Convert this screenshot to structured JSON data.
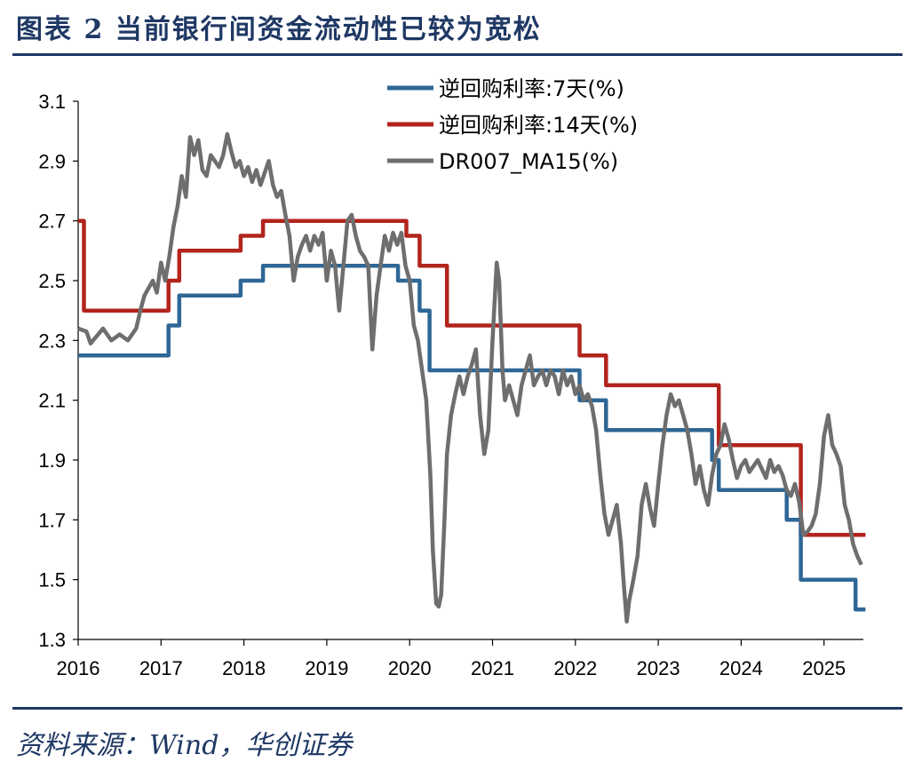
{
  "title": "图表 2    当前银行间资金流动性已较为宽松",
  "source": "资料来源：Wind，华创证券",
  "chart_data": {
    "type": "line",
    "title": "当前银行间资金流动性已较为宽松",
    "xlabel": "",
    "ylabel": "",
    "xlim": [
      2016,
      2025.5
    ],
    "ylim": [
      1.3,
      3.1
    ],
    "yticks": [
      "1.3",
      "1.5",
      "1.7",
      "1.9",
      "2.1",
      "2.3",
      "2.5",
      "2.7",
      "2.9",
      "3.1"
    ],
    "xticks": [
      "2016",
      "2017",
      "2018",
      "2019",
      "2020",
      "2021",
      "2022",
      "2023",
      "2024",
      "2025"
    ],
    "legend": "top-right",
    "series": [
      {
        "name": "逆回购利率:7天(%)",
        "color": "#2e6796",
        "step": true,
        "points": [
          [
            2016.0,
            2.25
          ],
          [
            2017.09,
            2.35
          ],
          [
            2017.22,
            2.45
          ],
          [
            2017.96,
            2.5
          ],
          [
            2018.23,
            2.55
          ],
          [
            2019.86,
            2.5
          ],
          [
            2020.12,
            2.4
          ],
          [
            2020.24,
            2.2
          ],
          [
            2022.05,
            2.1
          ],
          [
            2022.37,
            2.0
          ],
          [
            2023.65,
            1.9
          ],
          [
            2023.73,
            1.8
          ],
          [
            2024.55,
            1.7
          ],
          [
            2024.72,
            1.5
          ],
          [
            2025.38,
            1.4
          ],
          [
            2025.5,
            1.4
          ]
        ]
      },
      {
        "name": "逆回购利率:14天(%)",
        "color": "#b2241c",
        "step": true,
        "points": [
          [
            2016.0,
            2.7
          ],
          [
            2016.07,
            2.4
          ],
          [
            2017.09,
            2.5
          ],
          [
            2017.22,
            2.6
          ],
          [
            2017.96,
            2.65
          ],
          [
            2018.23,
            2.7
          ],
          [
            2019.96,
            2.65
          ],
          [
            2020.12,
            2.55
          ],
          [
            2020.45,
            2.35
          ],
          [
            2022.05,
            2.25
          ],
          [
            2022.37,
            2.15
          ],
          [
            2023.73,
            1.95
          ],
          [
            2024.72,
            1.65
          ],
          [
            2025.5,
            1.65
          ]
        ]
      },
      {
        "name": "DR007_MA15(%)",
        "color": "#6e6e6e",
        "step": false,
        "points": [
          [
            2016.0,
            2.34
          ],
          [
            2016.1,
            2.33
          ],
          [
            2016.15,
            2.29
          ],
          [
            2016.3,
            2.34
          ],
          [
            2016.4,
            2.3
          ],
          [
            2016.5,
            2.32
          ],
          [
            2016.6,
            2.3
          ],
          [
            2016.7,
            2.34
          ],
          [
            2016.75,
            2.4
          ],
          [
            2016.8,
            2.45
          ],
          [
            2016.9,
            2.5
          ],
          [
            2016.95,
            2.46
          ],
          [
            2017.0,
            2.56
          ],
          [
            2017.05,
            2.5
          ],
          [
            2017.1,
            2.58
          ],
          [
            2017.15,
            2.68
          ],
          [
            2017.2,
            2.75
          ],
          [
            2017.25,
            2.85
          ],
          [
            2017.3,
            2.78
          ],
          [
            2017.35,
            2.98
          ],
          [
            2017.4,
            2.92
          ],
          [
            2017.45,
            2.97
          ],
          [
            2017.5,
            2.87
          ],
          [
            2017.55,
            2.85
          ],
          [
            2017.6,
            2.92
          ],
          [
            2017.7,
            2.88
          ],
          [
            2017.75,
            2.92
          ],
          [
            2017.8,
            2.99
          ],
          [
            2017.85,
            2.93
          ],
          [
            2017.9,
            2.88
          ],
          [
            2017.95,
            2.9
          ],
          [
            2018.0,
            2.85
          ],
          [
            2018.05,
            2.88
          ],
          [
            2018.1,
            2.83
          ],
          [
            2018.15,
            2.87
          ],
          [
            2018.2,
            2.82
          ],
          [
            2018.25,
            2.86
          ],
          [
            2018.3,
            2.9
          ],
          [
            2018.35,
            2.82
          ],
          [
            2018.4,
            2.78
          ],
          [
            2018.45,
            2.8
          ],
          [
            2018.5,
            2.72
          ],
          [
            2018.55,
            2.65
          ],
          [
            2018.6,
            2.5
          ],
          [
            2018.65,
            2.58
          ],
          [
            2018.7,
            2.62
          ],
          [
            2018.75,
            2.65
          ],
          [
            2018.8,
            2.6
          ],
          [
            2018.85,
            2.65
          ],
          [
            2018.9,
            2.62
          ],
          [
            2018.95,
            2.66
          ],
          [
            2019.0,
            2.5
          ],
          [
            2019.05,
            2.6
          ],
          [
            2019.1,
            2.55
          ],
          [
            2019.15,
            2.4
          ],
          [
            2019.2,
            2.55
          ],
          [
            2019.25,
            2.7
          ],
          [
            2019.3,
            2.72
          ],
          [
            2019.35,
            2.65
          ],
          [
            2019.4,
            2.6
          ],
          [
            2019.45,
            2.58
          ],
          [
            2019.5,
            2.55
          ],
          [
            2019.55,
            2.27
          ],
          [
            2019.6,
            2.45
          ],
          [
            2019.65,
            2.55
          ],
          [
            2019.7,
            2.65
          ],
          [
            2019.75,
            2.6
          ],
          [
            2019.8,
            2.66
          ],
          [
            2019.85,
            2.62
          ],
          [
            2019.9,
            2.66
          ],
          [
            2019.95,
            2.55
          ],
          [
            2020.0,
            2.5
          ],
          [
            2020.05,
            2.35
          ],
          [
            2020.1,
            2.3
          ],
          [
            2020.15,
            2.2
          ],
          [
            2020.2,
            2.1
          ],
          [
            2020.25,
            1.85
          ],
          [
            2020.28,
            1.6
          ],
          [
            2020.32,
            1.42
          ],
          [
            2020.35,
            1.41
          ],
          [
            2020.38,
            1.45
          ],
          [
            2020.42,
            1.7
          ],
          [
            2020.45,
            1.92
          ],
          [
            2020.5,
            2.05
          ],
          [
            2020.55,
            2.12
          ],
          [
            2020.6,
            2.18
          ],
          [
            2020.65,
            2.12
          ],
          [
            2020.7,
            2.18
          ],
          [
            2020.75,
            2.22
          ],
          [
            2020.8,
            2.27
          ],
          [
            2020.85,
            2.05
          ],
          [
            2020.9,
            1.92
          ],
          [
            2020.95,
            2.0
          ],
          [
            2021.0,
            2.3
          ],
          [
            2021.05,
            2.56
          ],
          [
            2021.08,
            2.5
          ],
          [
            2021.12,
            2.2
          ],
          [
            2021.15,
            2.1
          ],
          [
            2021.2,
            2.15
          ],
          [
            2021.25,
            2.1
          ],
          [
            2021.3,
            2.05
          ],
          [
            2021.35,
            2.15
          ],
          [
            2021.4,
            2.2
          ],
          [
            2021.45,
            2.25
          ],
          [
            2021.5,
            2.15
          ],
          [
            2021.55,
            2.18
          ],
          [
            2021.6,
            2.2
          ],
          [
            2021.65,
            2.15
          ],
          [
            2021.7,
            2.2
          ],
          [
            2021.75,
            2.18
          ],
          [
            2021.8,
            2.12
          ],
          [
            2021.85,
            2.2
          ],
          [
            2021.9,
            2.15
          ],
          [
            2021.95,
            2.18
          ],
          [
            2022.0,
            2.12
          ],
          [
            2022.05,
            2.15
          ],
          [
            2022.1,
            2.1
          ],
          [
            2022.15,
            2.12
          ],
          [
            2022.2,
            2.08
          ],
          [
            2022.25,
            2.0
          ],
          [
            2022.3,
            1.85
          ],
          [
            2022.35,
            1.72
          ],
          [
            2022.4,
            1.65
          ],
          [
            2022.45,
            1.7
          ],
          [
            2022.5,
            1.75
          ],
          [
            2022.55,
            1.62
          ],
          [
            2022.58,
            1.5
          ],
          [
            2022.62,
            1.36
          ],
          [
            2022.65,
            1.43
          ],
          [
            2022.7,
            1.5
          ],
          [
            2022.75,
            1.58
          ],
          [
            2022.8,
            1.75
          ],
          [
            2022.85,
            1.82
          ],
          [
            2022.9,
            1.74
          ],
          [
            2022.95,
            1.68
          ],
          [
            2023.0,
            1.82
          ],
          [
            2023.05,
            1.95
          ],
          [
            2023.1,
            2.05
          ],
          [
            2023.15,
            2.12
          ],
          [
            2023.2,
            2.08
          ],
          [
            2023.25,
            2.1
          ],
          [
            2023.3,
            2.05
          ],
          [
            2023.35,
            2.0
          ],
          [
            2023.4,
            1.92
          ],
          [
            2023.45,
            1.82
          ],
          [
            2023.5,
            1.88
          ],
          [
            2023.55,
            1.8
          ],
          [
            2023.6,
            1.75
          ],
          [
            2023.65,
            1.85
          ],
          [
            2023.7,
            1.92
          ],
          [
            2023.75,
            1.95
          ],
          [
            2023.8,
            2.02
          ],
          [
            2023.85,
            1.97
          ],
          [
            2023.9,
            1.9
          ],
          [
            2023.95,
            1.84
          ],
          [
            2024.0,
            1.88
          ],
          [
            2024.05,
            1.9
          ],
          [
            2024.1,
            1.86
          ],
          [
            2024.15,
            1.88
          ],
          [
            2024.2,
            1.9
          ],
          [
            2024.25,
            1.87
          ],
          [
            2024.3,
            1.84
          ],
          [
            2024.35,
            1.9
          ],
          [
            2024.4,
            1.86
          ],
          [
            2024.45,
            1.88
          ],
          [
            2024.5,
            1.85
          ],
          [
            2024.55,
            1.8
          ],
          [
            2024.6,
            1.78
          ],
          [
            2024.65,
            1.82
          ],
          [
            2024.7,
            1.76
          ],
          [
            2024.75,
            1.65
          ],
          [
            2024.8,
            1.66
          ],
          [
            2024.85,
            1.68
          ],
          [
            2024.9,
            1.72
          ],
          [
            2024.95,
            1.82
          ],
          [
            2025.0,
            1.98
          ],
          [
            2025.05,
            2.05
          ],
          [
            2025.1,
            1.95
          ],
          [
            2025.15,
            1.92
          ],
          [
            2025.2,
            1.88
          ],
          [
            2025.25,
            1.75
          ],
          [
            2025.3,
            1.7
          ],
          [
            2025.35,
            1.62
          ],
          [
            2025.4,
            1.58
          ],
          [
            2025.45,
            1.55
          ]
        ]
      }
    ]
  }
}
